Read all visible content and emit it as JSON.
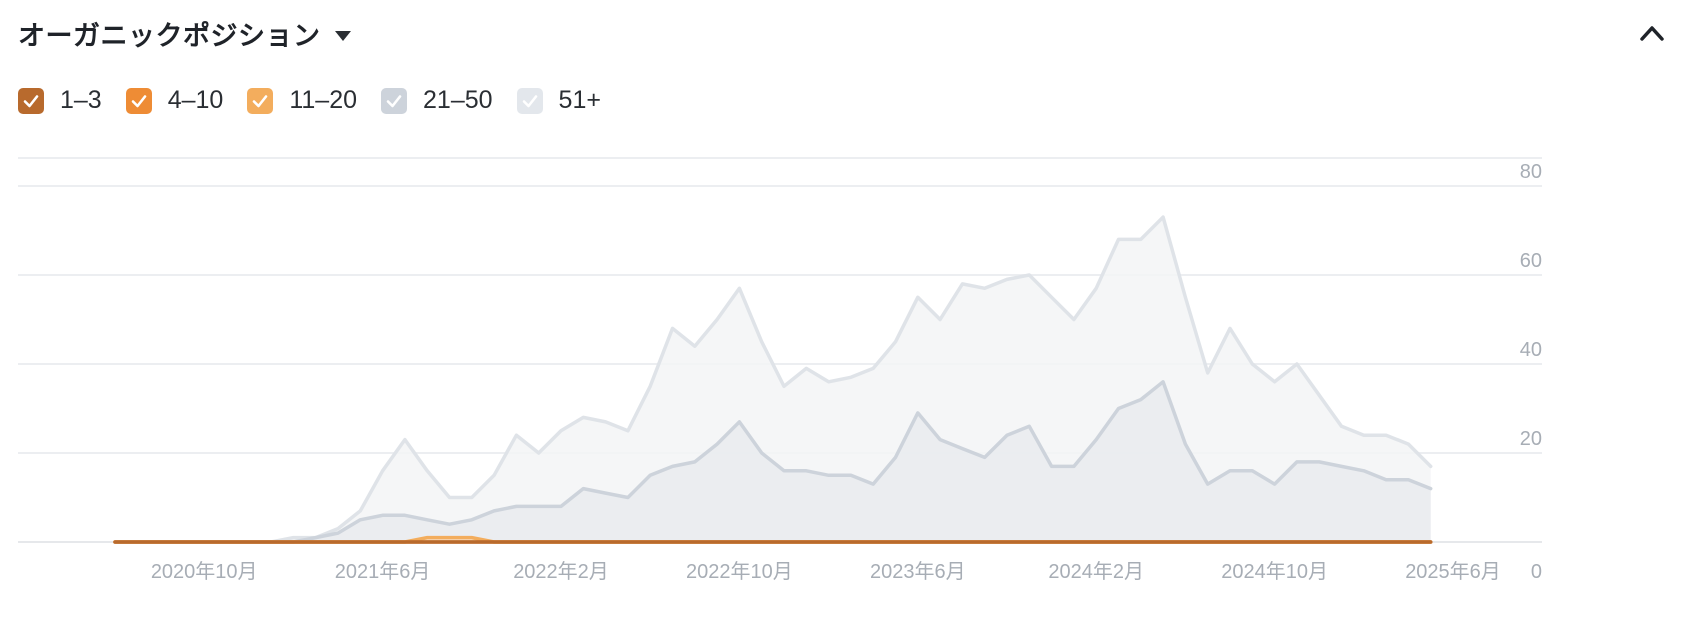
{
  "header": {
    "title": "オーガニックポジション",
    "dropdown_icon": "caret-down-icon",
    "collapse_icon": "chevron-up-icon"
  },
  "legend": [
    {
      "label": "1–3",
      "color": "#b86a2d",
      "checked": true
    },
    {
      "label": "4–10",
      "color": "#ee8c35",
      "checked": true
    },
    {
      "label": "11–20",
      "color": "#f3ad5d",
      "checked": true
    },
    {
      "label": "21–50",
      "color": "#cdd3db",
      "checked": true
    },
    {
      "label": "51+",
      "color": "#e3e7ec",
      "checked": true
    }
  ],
  "chart_data": {
    "type": "area",
    "stacked": false,
    "x_start": "2020-06",
    "x_step": "1 month",
    "x_ticks": [
      "2020年10月",
      "2021年6月",
      "2022年2月",
      "2022年10月",
      "2023年6月",
      "2024年2月",
      "2024年10月",
      "2025年6月"
    ],
    "x_tick_months": [
      "2020-10",
      "2021-06",
      "2022-02",
      "2022-10",
      "2023-06",
      "2024-02",
      "2024-10",
      "2025-06"
    ],
    "y_ticks": [
      "0",
      "20",
      "40",
      "60",
      "80"
    ],
    "ylim": [
      0,
      80
    ],
    "grid": true,
    "y_axis_side": "right",
    "series": [
      {
        "name": "51+",
        "color": "#dfe3e8",
        "fill": "#f3f4f6",
        "values": [
          0,
          0,
          0,
          0,
          0,
          0,
          0,
          0,
          1,
          1,
          3,
          7,
          16,
          23,
          16,
          10,
          10,
          15,
          24,
          20,
          25,
          28,
          27,
          25,
          35,
          48,
          44,
          50,
          57,
          45,
          35,
          39,
          36,
          37,
          39,
          45,
          55,
          50,
          58,
          57,
          59,
          60,
          55,
          50,
          57,
          68,
          68,
          73,
          55,
          38,
          48,
          40,
          36,
          40,
          33,
          26,
          24,
          24,
          22,
          17
        ]
      },
      {
        "name": "21–50",
        "color": "#cdd3db",
        "fill": "#e9ebef",
        "values": [
          0,
          0,
          0,
          0,
          0,
          0,
          0,
          0,
          0,
          1,
          2,
          5,
          6,
          6,
          5,
          4,
          5,
          7,
          8,
          8,
          8,
          12,
          11,
          10,
          15,
          17,
          18,
          22,
          27,
          20,
          16,
          16,
          15,
          15,
          13,
          19,
          29,
          23,
          21,
          19,
          24,
          26,
          17,
          17,
          23,
          30,
          32,
          36,
          22,
          13,
          16,
          16,
          13,
          18,
          18,
          17,
          16,
          14,
          14,
          12
        ]
      },
      {
        "name": "11–20",
        "color": "#f3ad5d",
        "fill": "#fbe4cf",
        "values": [
          0,
          0,
          0,
          0,
          0,
          0,
          0,
          0,
          0,
          0,
          0,
          0,
          0,
          0,
          1,
          1,
          1,
          0,
          0,
          0,
          0,
          0,
          0,
          0,
          0,
          0,
          0,
          0,
          0,
          0,
          0,
          0,
          0,
          0,
          0,
          0,
          0,
          0,
          0,
          0,
          0,
          0,
          0,
          0,
          0,
          0,
          0,
          0,
          0,
          0,
          0,
          0,
          0,
          0,
          0,
          0,
          0,
          0,
          0,
          0
        ]
      },
      {
        "name": "4–10",
        "color": "#ee8c35",
        "fill": "#f4d6bc",
        "values": [
          0,
          0,
          0,
          0,
          0,
          0,
          0,
          0,
          0,
          0,
          0,
          0,
          0,
          0,
          0,
          0,
          0,
          0,
          0,
          0,
          0,
          0,
          0,
          0,
          0,
          0,
          0,
          0,
          0,
          0,
          0,
          0,
          0,
          0,
          0,
          0,
          0,
          0,
          0,
          0,
          0,
          0,
          0,
          0,
          0,
          0,
          0,
          0,
          0,
          0,
          0,
          0,
          0,
          0,
          0,
          0,
          0,
          0,
          0,
          0
        ]
      },
      {
        "name": "1–3",
        "color": "#b86a2d",
        "fill": "#ecd2bd",
        "values": [
          0,
          0,
          0,
          0,
          0,
          0,
          0,
          0,
          0,
          0,
          0,
          0,
          0,
          0,
          0,
          0,
          0,
          0,
          0,
          0,
          0,
          0,
          0,
          0,
          0,
          0,
          0,
          0,
          0,
          0,
          0,
          0,
          0,
          0,
          0,
          0,
          0,
          0,
          0,
          0,
          0,
          0,
          0,
          0,
          0,
          0,
          0,
          0,
          0,
          0,
          0,
          0,
          0,
          0,
          0,
          0,
          0,
          0,
          0,
          0
        ]
      }
    ]
  }
}
